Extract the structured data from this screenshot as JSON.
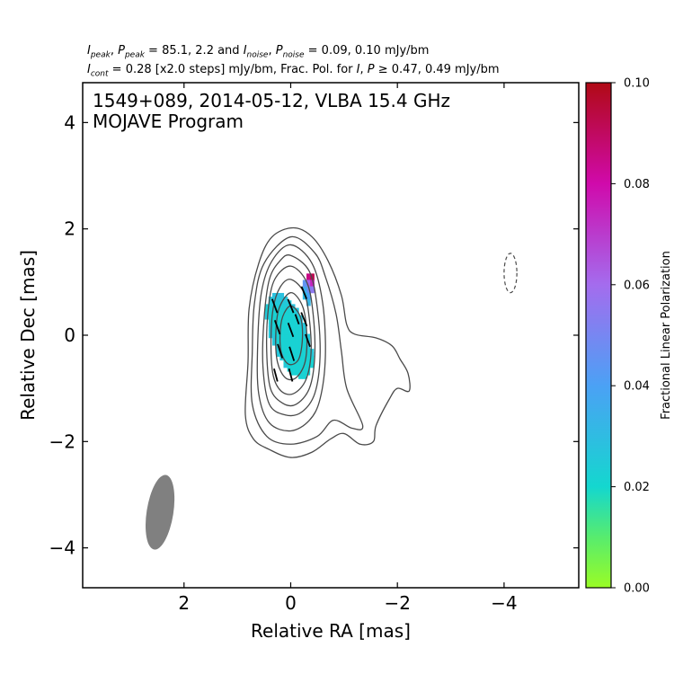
{
  "header": {
    "line1": {
      "i_peak": "I",
      "i_peak_sub": "peak",
      "p_peak": "P",
      "p_peak_sub": "peak",
      "peak_vals": " = 85.1, 2.2 and ",
      "i_noise": "I",
      "i_noise_sub": "noise",
      "p_noise": "P",
      "p_noise_sub": "noise",
      "noise_vals": " = 0.09, 0.10 mJy/bm",
      "sep1": ", ",
      "sep2": ", "
    },
    "line2": {
      "i_cont": "I",
      "i_cont_sub": "cont",
      "cont_text": " = 0.28 [x2.0 steps] mJy/bm, Frac. Pol. for ",
      "i_sym": "I",
      "sep": ", ",
      "p_sym": "P",
      "threshold_text": " ≥ 0.47, 0.49 mJy/bm"
    }
  },
  "chart_data": {
    "type": "contour",
    "title_line1": "1549+089, 2014-05-12, VLBA 15.4 GHz",
    "title_line2": "MOJAVE Program",
    "xlabel": "Relative RA [mas]",
    "ylabel": "Relative Dec [mas]",
    "xlim": [
      3.9,
      -5.4
    ],
    "ylim": [
      -4.75,
      4.75
    ],
    "xticks": [
      2,
      0,
      -2,
      -4
    ],
    "yticks": [
      4,
      2,
      0,
      -2,
      -4
    ],
    "xtick_labels": [
      "2",
      "0",
      "−2",
      "−4"
    ],
    "ytick_labels": [
      "4",
      "2",
      "0",
      "−2",
      "−4"
    ],
    "contour_base_mJy": 0.28,
    "contour_step_factor": 2.0,
    "contours": [
      {
        "level": 1,
        "points": [
          [
            -0.05,
            2.02
          ],
          [
            -0.4,
            1.85
          ],
          [
            -0.7,
            1.4
          ],
          [
            -0.95,
            0.75
          ],
          [
            -1.05,
            0.2
          ],
          [
            -1.2,
            0.02
          ],
          [
            -1.6,
            -0.05
          ],
          [
            -1.9,
            -0.2
          ],
          [
            -2.05,
            -0.45
          ],
          [
            -2.2,
            -0.72
          ],
          [
            -2.22,
            -1.05
          ],
          [
            -2.0,
            -1.0
          ],
          [
            -1.85,
            -1.2
          ],
          [
            -1.6,
            -1.7
          ],
          [
            -1.55,
            -2.0
          ],
          [
            -1.3,
            -2.05
          ],
          [
            -1.0,
            -1.85
          ],
          [
            -0.75,
            -1.95
          ],
          [
            -0.4,
            -2.2
          ],
          [
            0.0,
            -2.3
          ],
          [
            0.4,
            -2.15
          ],
          [
            0.7,
            -1.95
          ],
          [
            0.85,
            -1.5
          ],
          [
            0.8,
            -0.5
          ],
          [
            0.78,
            0.5
          ],
          [
            0.6,
            1.35
          ],
          [
            0.35,
            1.85
          ]
        ]
      },
      {
        "level": 2,
        "points": [
          [
            0.0,
            1.85
          ],
          [
            -0.45,
            1.55
          ],
          [
            -0.65,
            1.1
          ],
          [
            -0.85,
            0.4
          ],
          [
            -0.95,
            -0.3
          ],
          [
            -1.05,
            -1.0
          ],
          [
            -1.35,
            -1.7
          ],
          [
            -1.15,
            -1.75
          ],
          [
            -0.8,
            -1.6
          ],
          [
            -0.5,
            -1.9
          ],
          [
            0.0,
            -2.05
          ],
          [
            0.45,
            -1.9
          ],
          [
            0.72,
            -1.3
          ],
          [
            0.72,
            -0.3
          ],
          [
            0.68,
            0.6
          ],
          [
            0.5,
            1.35
          ]
        ]
      },
      {
        "level": 3,
        "points": [
          [
            0.0,
            1.7
          ],
          [
            -0.4,
            1.35
          ],
          [
            -0.6,
            0.6
          ],
          [
            -0.65,
            -0.4
          ],
          [
            -0.55,
            -1.2
          ],
          [
            -0.35,
            -1.6
          ],
          [
            0.0,
            -1.8
          ],
          [
            0.4,
            -1.65
          ],
          [
            0.6,
            -1.1
          ],
          [
            0.62,
            -0.2
          ],
          [
            0.55,
            0.8
          ],
          [
            0.35,
            1.4
          ]
        ]
      },
      {
        "level": 4,
        "points": [
          [
            0.0,
            1.5
          ],
          [
            -0.35,
            1.2
          ],
          [
            -0.5,
            0.5
          ],
          [
            -0.55,
            -0.4
          ],
          [
            -0.45,
            -1.1
          ],
          [
            -0.2,
            -1.45
          ],
          [
            0.1,
            -1.5
          ],
          [
            0.4,
            -1.3
          ],
          [
            0.52,
            -0.6
          ],
          [
            0.5,
            0.3
          ],
          [
            0.4,
            1.05
          ],
          [
            0.2,
            1.4
          ]
        ]
      },
      {
        "level": 5,
        "points": [
          [
            0.0,
            1.3
          ],
          [
            -0.3,
            1.0
          ],
          [
            -0.42,
            0.4
          ],
          [
            -0.45,
            -0.4
          ],
          [
            -0.35,
            -1.0
          ],
          [
            -0.1,
            -1.3
          ],
          [
            0.15,
            -1.28
          ],
          [
            0.38,
            -1.0
          ],
          [
            0.45,
            -0.3
          ],
          [
            0.42,
            0.5
          ],
          [
            0.3,
            1.05
          ]
        ]
      },
      {
        "level": 6,
        "points": [
          [
            0.0,
            1.05
          ],
          [
            -0.25,
            0.8
          ],
          [
            -0.35,
            0.3
          ],
          [
            -0.38,
            -0.35
          ],
          [
            -0.28,
            -0.85
          ],
          [
            -0.05,
            -1.1
          ],
          [
            0.18,
            -1.05
          ],
          [
            0.33,
            -0.75
          ],
          [
            0.37,
            -0.15
          ],
          [
            0.33,
            0.5
          ],
          [
            0.2,
            0.9
          ]
        ]
      },
      {
        "level": 7,
        "points": [
          [
            0.0,
            0.8
          ],
          [
            -0.22,
            0.55
          ],
          [
            -0.3,
            0.05
          ],
          [
            -0.27,
            -0.5
          ],
          [
            -0.1,
            -0.8
          ],
          [
            0.1,
            -0.8
          ],
          [
            0.25,
            -0.5
          ],
          [
            0.28,
            0.0
          ],
          [
            0.22,
            0.5
          ]
        ]
      },
      {
        "level": 8,
        "points": [
          [
            0.0,
            0.55
          ],
          [
            -0.18,
            0.35
          ],
          [
            -0.22,
            -0.05
          ],
          [
            -0.15,
            -0.45
          ],
          [
            0.03,
            -0.55
          ],
          [
            0.17,
            -0.35
          ],
          [
            0.2,
            0.0
          ],
          [
            0.15,
            0.35
          ]
        ]
      }
    ],
    "negative_contour": {
      "center": [
        -4.12,
        1.17
      ],
      "rx": 0.12,
      "ry": 0.37
    },
    "beam": {
      "center": [
        2.45,
        -3.33
      ],
      "major": 1.42,
      "minor": 0.5,
      "pa_deg": -9
    },
    "fracpol_mask": {
      "center": [
        0.03,
        0.0
      ],
      "rx": 0.34,
      "ry": 0.85,
      "tilt_deg": -20,
      "base_value": 0.022
    },
    "fracpol_extra_pixels": [
      {
        "x": -0.33,
        "y": 1.1,
        "value": 0.085
      },
      {
        "x": -0.4,
        "y": 1.1,
        "value": 0.092
      },
      {
        "x": -0.33,
        "y": 0.98,
        "value": 0.062
      },
      {
        "x": -0.4,
        "y": 0.98,
        "value": 0.075
      },
      {
        "x": -0.33,
        "y": 0.86,
        "value": 0.048
      },
      {
        "x": -0.4,
        "y": 0.86,
        "value": 0.055
      },
      {
        "x": -0.26,
        "y": 0.86,
        "value": 0.036
      },
      {
        "x": -0.33,
        "y": 0.74,
        "value": 0.04
      },
      {
        "x": -0.26,
        "y": 0.98,
        "value": 0.045
      },
      {
        "x": -0.26,
        "y": 0.74,
        "value": 0.03
      },
      {
        "x": -0.33,
        "y": 0.62,
        "value": 0.032
      }
    ],
    "evpa_ticks": [
      {
        "x": 0.3,
        "y": 0.55,
        "angle_deg": 20,
        "len": 0.28
      },
      {
        "x": 0.25,
        "y": 0.15,
        "angle_deg": 20,
        "len": 0.28
      },
      {
        "x": 0.2,
        "y": -0.3,
        "angle_deg": 18,
        "len": 0.28
      },
      {
        "x": 0.28,
        "y": -0.75,
        "angle_deg": 15,
        "len": 0.25
      },
      {
        "x": 0.0,
        "y": 0.55,
        "angle_deg": 22,
        "len": 0.28
      },
      {
        "x": 0.0,
        "y": 0.1,
        "angle_deg": 20,
        "len": 0.28
      },
      {
        "x": -0.02,
        "y": -0.35,
        "angle_deg": 18,
        "len": 0.28
      },
      {
        "x": 0.0,
        "y": -0.75,
        "angle_deg": 15,
        "len": 0.25
      },
      {
        "x": -0.25,
        "y": 0.8,
        "angle_deg": 22,
        "len": 0.25
      },
      {
        "x": -0.25,
        "y": 0.3,
        "angle_deg": 22,
        "len": 0.28
      },
      {
        "x": -0.32,
        "y": -0.1,
        "angle_deg": 20,
        "len": 0.25
      },
      {
        "x": -0.12,
        "y": 0.3,
        "angle_deg": 20,
        "len": 0.2
      }
    ],
    "colorbar": {
      "label": "Fractional Linear Polarization",
      "range": [
        0.0,
        0.1
      ],
      "ticks": [
        0.0,
        0.02,
        0.04,
        0.06,
        0.08,
        0.1
      ],
      "tick_labels": [
        "0.00",
        "0.02",
        "0.04",
        "0.06",
        "0.08",
        "0.10"
      ],
      "colormap_stops": [
        {
          "v": 0.0,
          "color": "#9afc25"
        },
        {
          "v": 0.01,
          "color": "#57ec6e"
        },
        {
          "v": 0.02,
          "color": "#14d7cf"
        },
        {
          "v": 0.04,
          "color": "#4ba1f5"
        },
        {
          "v": 0.06,
          "color": "#a46cee"
        },
        {
          "v": 0.08,
          "color": "#d00aab"
        },
        {
          "v": 0.1,
          "color": "#b00a15"
        }
      ]
    },
    "colors": {
      "contour": "#4a4a4a",
      "beam": "#808080",
      "evpa": "#000000"
    }
  }
}
